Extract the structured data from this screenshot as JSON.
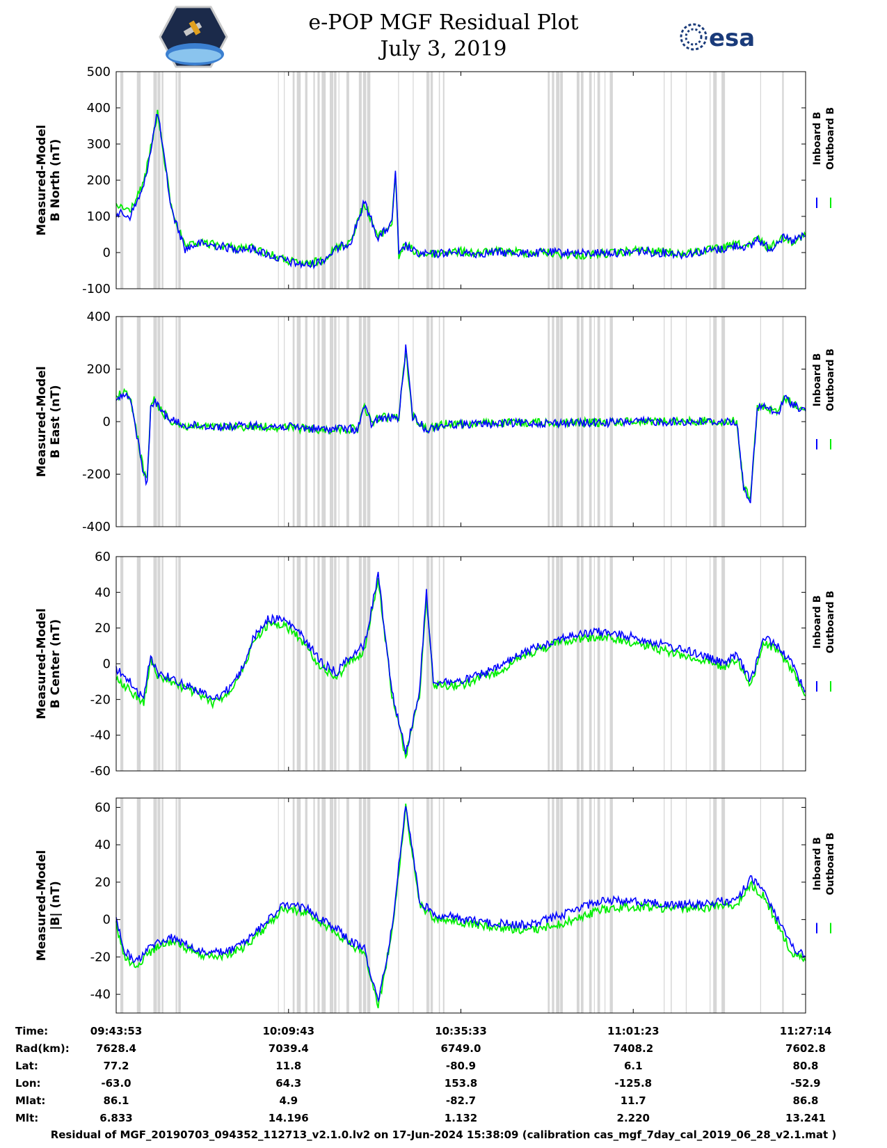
{
  "header": {
    "title_line1": "e-POP MGF Residual Plot",
    "title_line2": "July 3, 2019",
    "logo_left_name": "cassiope-mission-icon",
    "logo_right_text": "esa"
  },
  "colors": {
    "inboard": "#0000ff",
    "outboard": "#00ee00",
    "shading": "#d6d6d6",
    "axis": "#000000"
  },
  "chart_data": [
    {
      "type": "line",
      "id": "north",
      "ylabel_line1": "Measured-Model",
      "ylabel_line2": "B North (nT)",
      "ylim": [
        -100,
        500
      ],
      "yticks": [
        500,
        400,
        300,
        200,
        100,
        0,
        -100
      ],
      "legend": [
        "Inboard B",
        "Outboard B"
      ],
      "series": [
        {
          "name": "Inboard B",
          "x": [
            0,
            2,
            4,
            6,
            8,
            10,
            12,
            14,
            16,
            17,
            18,
            20,
            22,
            24,
            26,
            28,
            30,
            32,
            34,
            36,
            38,
            39,
            40,
            40.5,
            41,
            42,
            43,
            44,
            46,
            48,
            50,
            52,
            54,
            56,
            58,
            60,
            62,
            64,
            66,
            68,
            70,
            72,
            74,
            76,
            78,
            80,
            82,
            84,
            86,
            88,
            90,
            92,
            93,
            94,
            95,
            96,
            97,
            98,
            99,
            100
          ],
          "y": [
            110,
            100,
            180,
            390,
            120,
            10,
            25,
            20,
            15,
            10,
            12,
            10,
            -5,
            -20,
            -30,
            -35,
            -20,
            10,
            30,
            140,
            40,
            60,
            80,
            230,
            -10,
            20,
            5,
            -5,
            -5,
            0,
            0,
            -3,
            0,
            0,
            0,
            -3,
            0,
            0,
            0,
            -3,
            0,
            0,
            0,
            5,
            0,
            0,
            -5,
            0,
            5,
            10,
            20,
            15,
            40,
            20,
            10,
            35,
            40,
            30,
            40,
            45
          ]
        },
        {
          "name": "Outboard B",
          "x": [
            0,
            2,
            4,
            6,
            8,
            10,
            12,
            14,
            16,
            17,
            18,
            20,
            22,
            24,
            26,
            28,
            30,
            32,
            34,
            36,
            38,
            39,
            40,
            40.5,
            41,
            42,
            43,
            44,
            46,
            48,
            50,
            52,
            54,
            56,
            58,
            60,
            62,
            64,
            66,
            68,
            70,
            72,
            74,
            76,
            78,
            80,
            82,
            84,
            86,
            88,
            90,
            92,
            93,
            94,
            95,
            96,
            97,
            98,
            99,
            100
          ],
          "y": [
            130,
            115,
            190,
            385,
            125,
            12,
            27,
            22,
            17,
            12,
            14,
            12,
            -3,
            -18,
            -28,
            -33,
            -18,
            12,
            32,
            138,
            42,
            62,
            82,
            225,
            -8,
            22,
            7,
            -3,
            -3,
            2,
            2,
            -1,
            2,
            2,
            2,
            -1,
            2,
            -5,
            -5,
            -8,
            -3,
            -2,
            2,
            7,
            2,
            2,
            -3,
            2,
            7,
            12,
            22,
            17,
            42,
            22,
            12,
            37,
            42,
            32,
            42,
            47
          ]
        }
      ]
    },
    {
      "type": "line",
      "id": "east",
      "ylabel_line1": "Measured-Model",
      "ylabel_line2": "B East (nT)",
      "ylim": [
        -400,
        400
      ],
      "yticks": [
        400,
        200,
        0,
        -200,
        -400
      ],
      "legend": [
        "Inboard B",
        "Outboard B"
      ],
      "series": [
        {
          "name": "Inboard B",
          "x": [
            0,
            1,
            2,
            3,
            4,
            4.5,
            5,
            5.5,
            6,
            7,
            8,
            9,
            10,
            12,
            15,
            20,
            25,
            28,
            30,
            32,
            35,
            36,
            37,
            38,
            40,
            41,
            42,
            43,
            45,
            48,
            50,
            55,
            60,
            65,
            70,
            75,
            80,
            85,
            88,
            90,
            91,
            92,
            93,
            94,
            95,
            96,
            97,
            98,
            100
          ],
          "y": [
            80,
            100,
            90,
            -50,
            -200,
            -240,
            50,
            80,
            60,
            30,
            5,
            -5,
            -15,
            -15,
            -20,
            -15,
            -20,
            -25,
            -30,
            -25,
            -30,
            60,
            -10,
            10,
            15,
            15,
            280,
            20,
            -30,
            -10,
            -10,
            -8,
            -5,
            -5,
            -5,
            0,
            0,
            0,
            0,
            0,
            -250,
            -300,
            50,
            60,
            40,
            30,
            90,
            70,
            40
          ]
        },
        {
          "name": "Outboard B",
          "x": [
            0,
            1,
            2,
            3,
            4,
            4.5,
            5,
            5.5,
            6,
            7,
            8,
            9,
            10,
            12,
            15,
            20,
            25,
            28,
            30,
            32,
            35,
            36,
            37,
            38,
            40,
            41,
            42,
            43,
            45,
            48,
            50,
            55,
            60,
            65,
            70,
            75,
            80,
            85,
            88,
            90,
            91,
            92,
            93,
            94,
            95,
            96,
            97,
            98,
            100
          ],
          "y": [
            95,
            110,
            95,
            -45,
            -190,
            -230,
            55,
            85,
            62,
            28,
            2,
            -8,
            -20,
            -18,
            -22,
            -18,
            -22,
            -28,
            -32,
            -28,
            -28,
            58,
            -5,
            15,
            18,
            18,
            270,
            22,
            -28,
            -8,
            -8,
            -6,
            -3,
            -3,
            -3,
            2,
            2,
            2,
            2,
            2,
            -245,
            -295,
            52,
            62,
            42,
            32,
            92,
            72,
            42
          ]
        }
      ]
    },
    {
      "type": "line",
      "id": "center",
      "ylabel_line1": "Measured-Model",
      "ylabel_line2": "B Center (nT)",
      "ylim": [
        -60,
        60
      ],
      "yticks": [
        60,
        40,
        20,
        0,
        -20,
        -40,
        -60
      ],
      "legend": [
        "Inboard B",
        "Outboard B"
      ],
      "series": [
        {
          "name": "Inboard B",
          "x": [
            0,
            2,
            4,
            5,
            6,
            8,
            10,
            12,
            14,
            16,
            18,
            20,
            22,
            24,
            26,
            28,
            30,
            32,
            34,
            36,
            38,
            40,
            42,
            44,
            45,
            46,
            48,
            50,
            55,
            60,
            65,
            70,
            75,
            80,
            85,
            88,
            90,
            92,
            94,
            96,
            98,
            100
          ],
          "y": [
            -3,
            -10,
            -20,
            5,
            -5,
            -8,
            -12,
            -15,
            -20,
            -15,
            -5,
            15,
            25,
            25,
            20,
            10,
            0,
            -5,
            5,
            10,
            50,
            -15,
            -50,
            -15,
            40,
            -10,
            -10,
            -10,
            -3,
            8,
            15,
            18,
            15,
            10,
            5,
            0,
            5,
            -10,
            15,
            10,
            0,
            -15
          ]
        },
        {
          "name": "Outboard B",
          "x": [
            0,
            2,
            4,
            5,
            6,
            8,
            10,
            12,
            14,
            16,
            18,
            20,
            22,
            24,
            26,
            28,
            30,
            32,
            34,
            36,
            38,
            40,
            42,
            44,
            45,
            46,
            48,
            50,
            55,
            60,
            65,
            70,
            75,
            80,
            85,
            88,
            90,
            92,
            94,
            96,
            98,
            100
          ],
          "y": [
            -8,
            -15,
            -22,
            2,
            -7,
            -10,
            -14,
            -17,
            -22,
            -17,
            -7,
            13,
            22,
            22,
            17,
            7,
            -3,
            -8,
            2,
            7,
            47,
            -17,
            -52,
            -17,
            38,
            -12,
            -12,
            -12,
            -5,
            6,
            13,
            15,
            12,
            7,
            2,
            -2,
            3,
            -12,
            12,
            7,
            -3,
            -18
          ]
        }
      ]
    },
    {
      "type": "line",
      "id": "magnitude",
      "ylabel_line1": "Measured-Model",
      "ylabel_line2": "|B| (nT)",
      "ylim": [
        -50,
        65
      ],
      "yticks": [
        60,
        40,
        20,
        0,
        -20,
        -40
      ],
      "legend": [
        "Inboard B",
        "Outboard B"
      ],
      "series": [
        {
          "name": "Inboard B",
          "x": [
            0,
            1,
            2,
            3,
            4,
            6,
            8,
            10,
            12,
            14,
            16,
            18,
            20,
            22,
            24,
            26,
            28,
            30,
            32,
            34,
            36,
            38,
            40,
            42,
            44,
            46,
            48,
            50,
            55,
            60,
            65,
            70,
            75,
            80,
            85,
            88,
            90,
            92,
            94,
            96,
            98,
            100
          ],
          "y": [
            0,
            -15,
            -20,
            -22,
            -18,
            -12,
            -10,
            -13,
            -17,
            -18,
            -17,
            -14,
            -8,
            0,
            7,
            7,
            5,
            0,
            -5,
            -12,
            -15,
            -45,
            -5,
            62,
            10,
            3,
            2,
            0,
            -2,
            -3,
            3,
            10,
            10,
            8,
            8,
            10,
            10,
            22,
            15,
            0,
            -15,
            -20
          ]
        },
        {
          "name": "Outboard B",
          "x": [
            0,
            1,
            2,
            3,
            4,
            6,
            8,
            10,
            12,
            14,
            16,
            18,
            20,
            22,
            24,
            26,
            28,
            30,
            32,
            34,
            36,
            38,
            40,
            42,
            44,
            46,
            48,
            50,
            55,
            60,
            65,
            70,
            75,
            80,
            85,
            88,
            90,
            92,
            94,
            96,
            98,
            100
          ],
          "y": [
            -3,
            -18,
            -23,
            -25,
            -21,
            -14,
            -12,
            -15,
            -19,
            -20,
            -19,
            -16,
            -10,
            -3,
            5,
            5,
            3,
            -2,
            -7,
            -14,
            -17,
            -47,
            -7,
            60,
            8,
            1,
            0,
            -2,
            -4,
            -6,
            -2,
            5,
            7,
            6,
            6,
            8,
            8,
            19,
            12,
            -3,
            -18,
            -22
          ]
        }
      ]
    }
  ],
  "time_axis": {
    "row_labels": [
      "Time:",
      "Rad(km):",
      "Lat:",
      "Lon:",
      "Mlat:",
      "Mlt:"
    ],
    "columns": [
      [
        "09:43:53",
        "7628.4",
        "77.2",
        "-63.0",
        "86.1",
        "6.833"
      ],
      [
        "10:09:43",
        "7039.4",
        "11.8",
        "64.3",
        "4.9",
        "14.196"
      ],
      [
        "10:35:33",
        "6749.0",
        "-80.9",
        "153.8",
        "-82.7",
        "1.132"
      ],
      [
        "11:01:23",
        "7408.2",
        "6.1",
        "-125.8",
        "11.7",
        "2.220"
      ],
      [
        "11:27:14",
        "7602.8",
        "80.8",
        "-52.9",
        "86.8",
        "13.241"
      ]
    ]
  },
  "footer": "Residual of MGF_20190703_094352_112713_v2.1.0.lv2 on 17-Jun-2024 15:38:09 (calibration cas_mgf_7day_cal_2019_06_28_v2.1.mat )"
}
